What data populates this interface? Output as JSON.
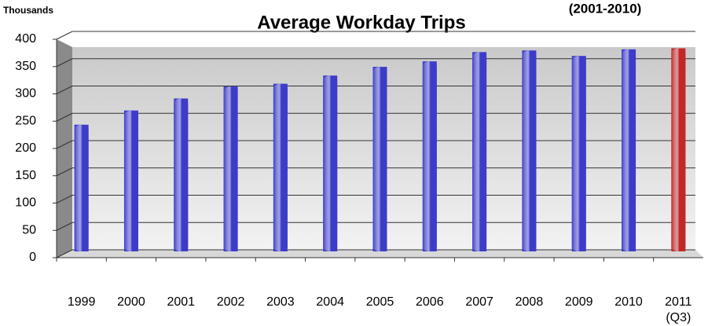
{
  "chart_data": {
    "type": "bar",
    "title": "Average Workday Trips",
    "y_axis_label": "Thousands",
    "annotation": "(2001-2010)",
    "categories": [
      "1999",
      "2000",
      "2001",
      "2002",
      "2003",
      "2004",
      "2005",
      "2006",
      "2007",
      "2008",
      "2009",
      "2010",
      "2011 (Q3)"
    ],
    "values": [
      232,
      258,
      280,
      302,
      307,
      322,
      338,
      348,
      365,
      368,
      358,
      370,
      372
    ],
    "colors": [
      "#3c3cc8",
      "#3c3cc8",
      "#3c3cc8",
      "#3c3cc8",
      "#3c3cc8",
      "#3c3cc8",
      "#3c3cc8",
      "#3c3cc8",
      "#3c3cc8",
      "#3c3cc8",
      "#3c3cc8",
      "#3c3cc8",
      "#c0282a"
    ],
    "ylim": [
      0,
      400
    ],
    "yticks": [
      0,
      50,
      100,
      150,
      200,
      250,
      300,
      350,
      400
    ],
    "grid": true
  }
}
